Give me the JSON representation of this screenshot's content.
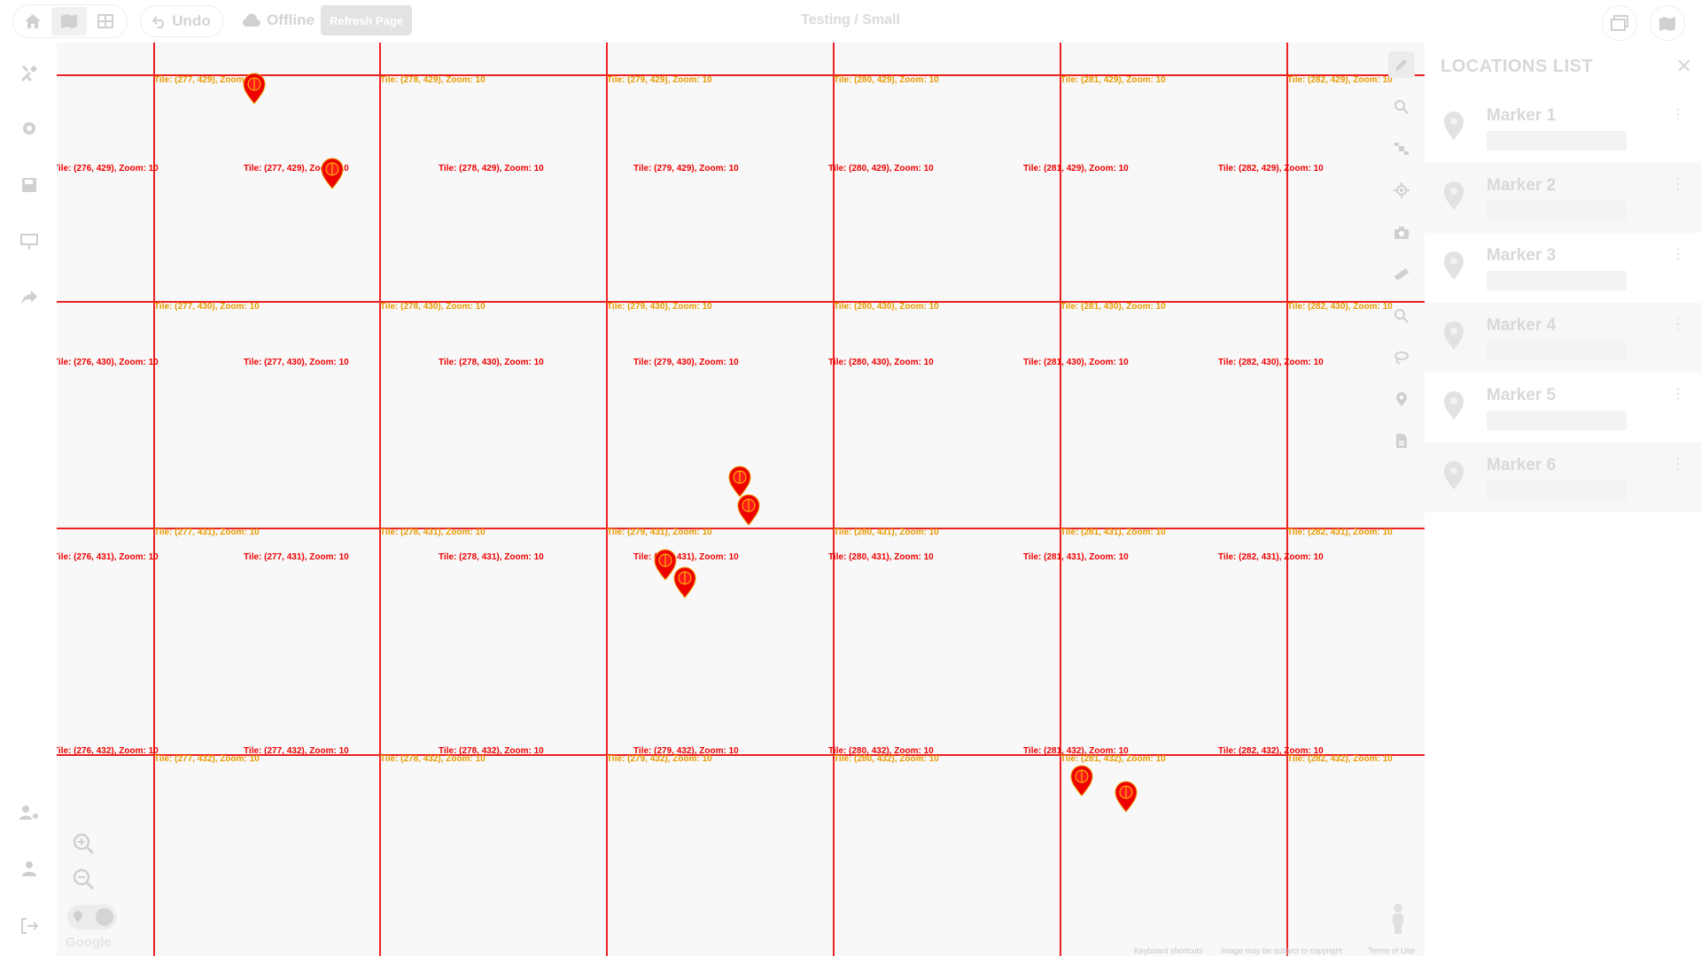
{
  "topbar": {
    "undo_label": "Undo",
    "offline_label": "Offline",
    "refresh_label": "Refresh Page",
    "title": "Testing / Small"
  },
  "map": {
    "tile_labels_a": [
      "Tile: (277, 429), Zoom: 10",
      "Tile: (278, 429), Zoom: 10",
      "Tile: (279, 429), Zoom: 10",
      "Tile: (280, 429), Zoom: 10",
      "Tile: (281, 429), Zoom: 10",
      "Tile: (282, 429), Zoom: 10",
      "Tile: (277, 430), Zoom: 10",
      "Tile: (278, 430), Zoom: 10",
      "Tile: (279, 430), Zoom: 10",
      "Tile: (280, 430), Zoom: 10",
      "Tile: (281, 430), Zoom: 10",
      "Tile: (282, 430), Zoom: 10",
      "Tile: (277, 431), Zoom: 10",
      "Tile: (278, 431), Zoom: 10",
      "Tile: (279, 431), Zoom: 10",
      "Tile: (280, 431), Zoom: 10",
      "Tile: (281, 431), Zoom: 10",
      "Tile: (282, 431), Zoom: 10",
      "Tile: (277, 432), Zoom: 10",
      "Tile: (278, 432), Zoom: 10",
      "Tile: (279, 432), Zoom: 10",
      "Tile: (280, 432), Zoom: 10",
      "Tile: (281, 432), Zoom: 10",
      "Tile: (282, 432), Zoom: 10"
    ],
    "tile_labels_b": [
      "Tile: (276, 429), Zoom: 10",
      "Tile: (277, 429), Zoom: 10",
      "Tile: (278, 429), Zoom: 10",
      "Tile: (279, 429), Zoom: 10",
      "Tile: (280, 429), Zoom: 10",
      "Tile: (281, 429), Zoom: 10",
      "Tile: (282, 429), Zoom: 10",
      "Tile: (276, 430), Zoom: 10",
      "Tile: (277, 430), Zoom: 10",
      "Tile: (278, 430), Zoom: 10",
      "Tile: (279, 430), Zoom: 10",
      "Tile: (280, 430), Zoom: 10",
      "Tile: (281, 430), Zoom: 10",
      "Tile: (282, 430), Zoom: 10",
      "Tile: (276, 431), Zoom: 10",
      "Tile: (277, 431), Zoom: 10",
      "Tile: (278, 431), Zoom: 10",
      "Tile: (279, 431), Zoom: 10",
      "Tile: (280, 431), Zoom: 10",
      "Tile: (281, 431), Zoom: 10",
      "Tile: (282, 431), Zoom: 10",
      "Tile: (276, 432), Zoom: 10",
      "Tile: (277, 432), Zoom: 10",
      "Tile: (278, 432), Zoom: 10",
      "Tile: (279, 432), Zoom: 10",
      "Tile: (280, 432), Zoom: 10",
      "Tile: (281, 432), Zoom: 10",
      "Tile: (282, 432), Zoom: 10"
    ],
    "footer": {
      "shortcuts": "Keyboard shortcuts",
      "copyright": "Image may be subject to copyright",
      "terms": "Terms of Use",
      "logo": "Google"
    }
  },
  "panel": {
    "title": "LOCATIONS LIST",
    "items": [
      {
        "name": "Marker 1"
      },
      {
        "name": "Marker 2"
      },
      {
        "name": "Marker 3"
      },
      {
        "name": "Marker 4"
      },
      {
        "name": "Marker 5"
      },
      {
        "name": "Marker 6"
      }
    ]
  },
  "colors": {
    "grid": "#ee2222",
    "marker": "#ee0000",
    "label_alt": "#e89a00",
    "muted": "#d8d8d8"
  }
}
